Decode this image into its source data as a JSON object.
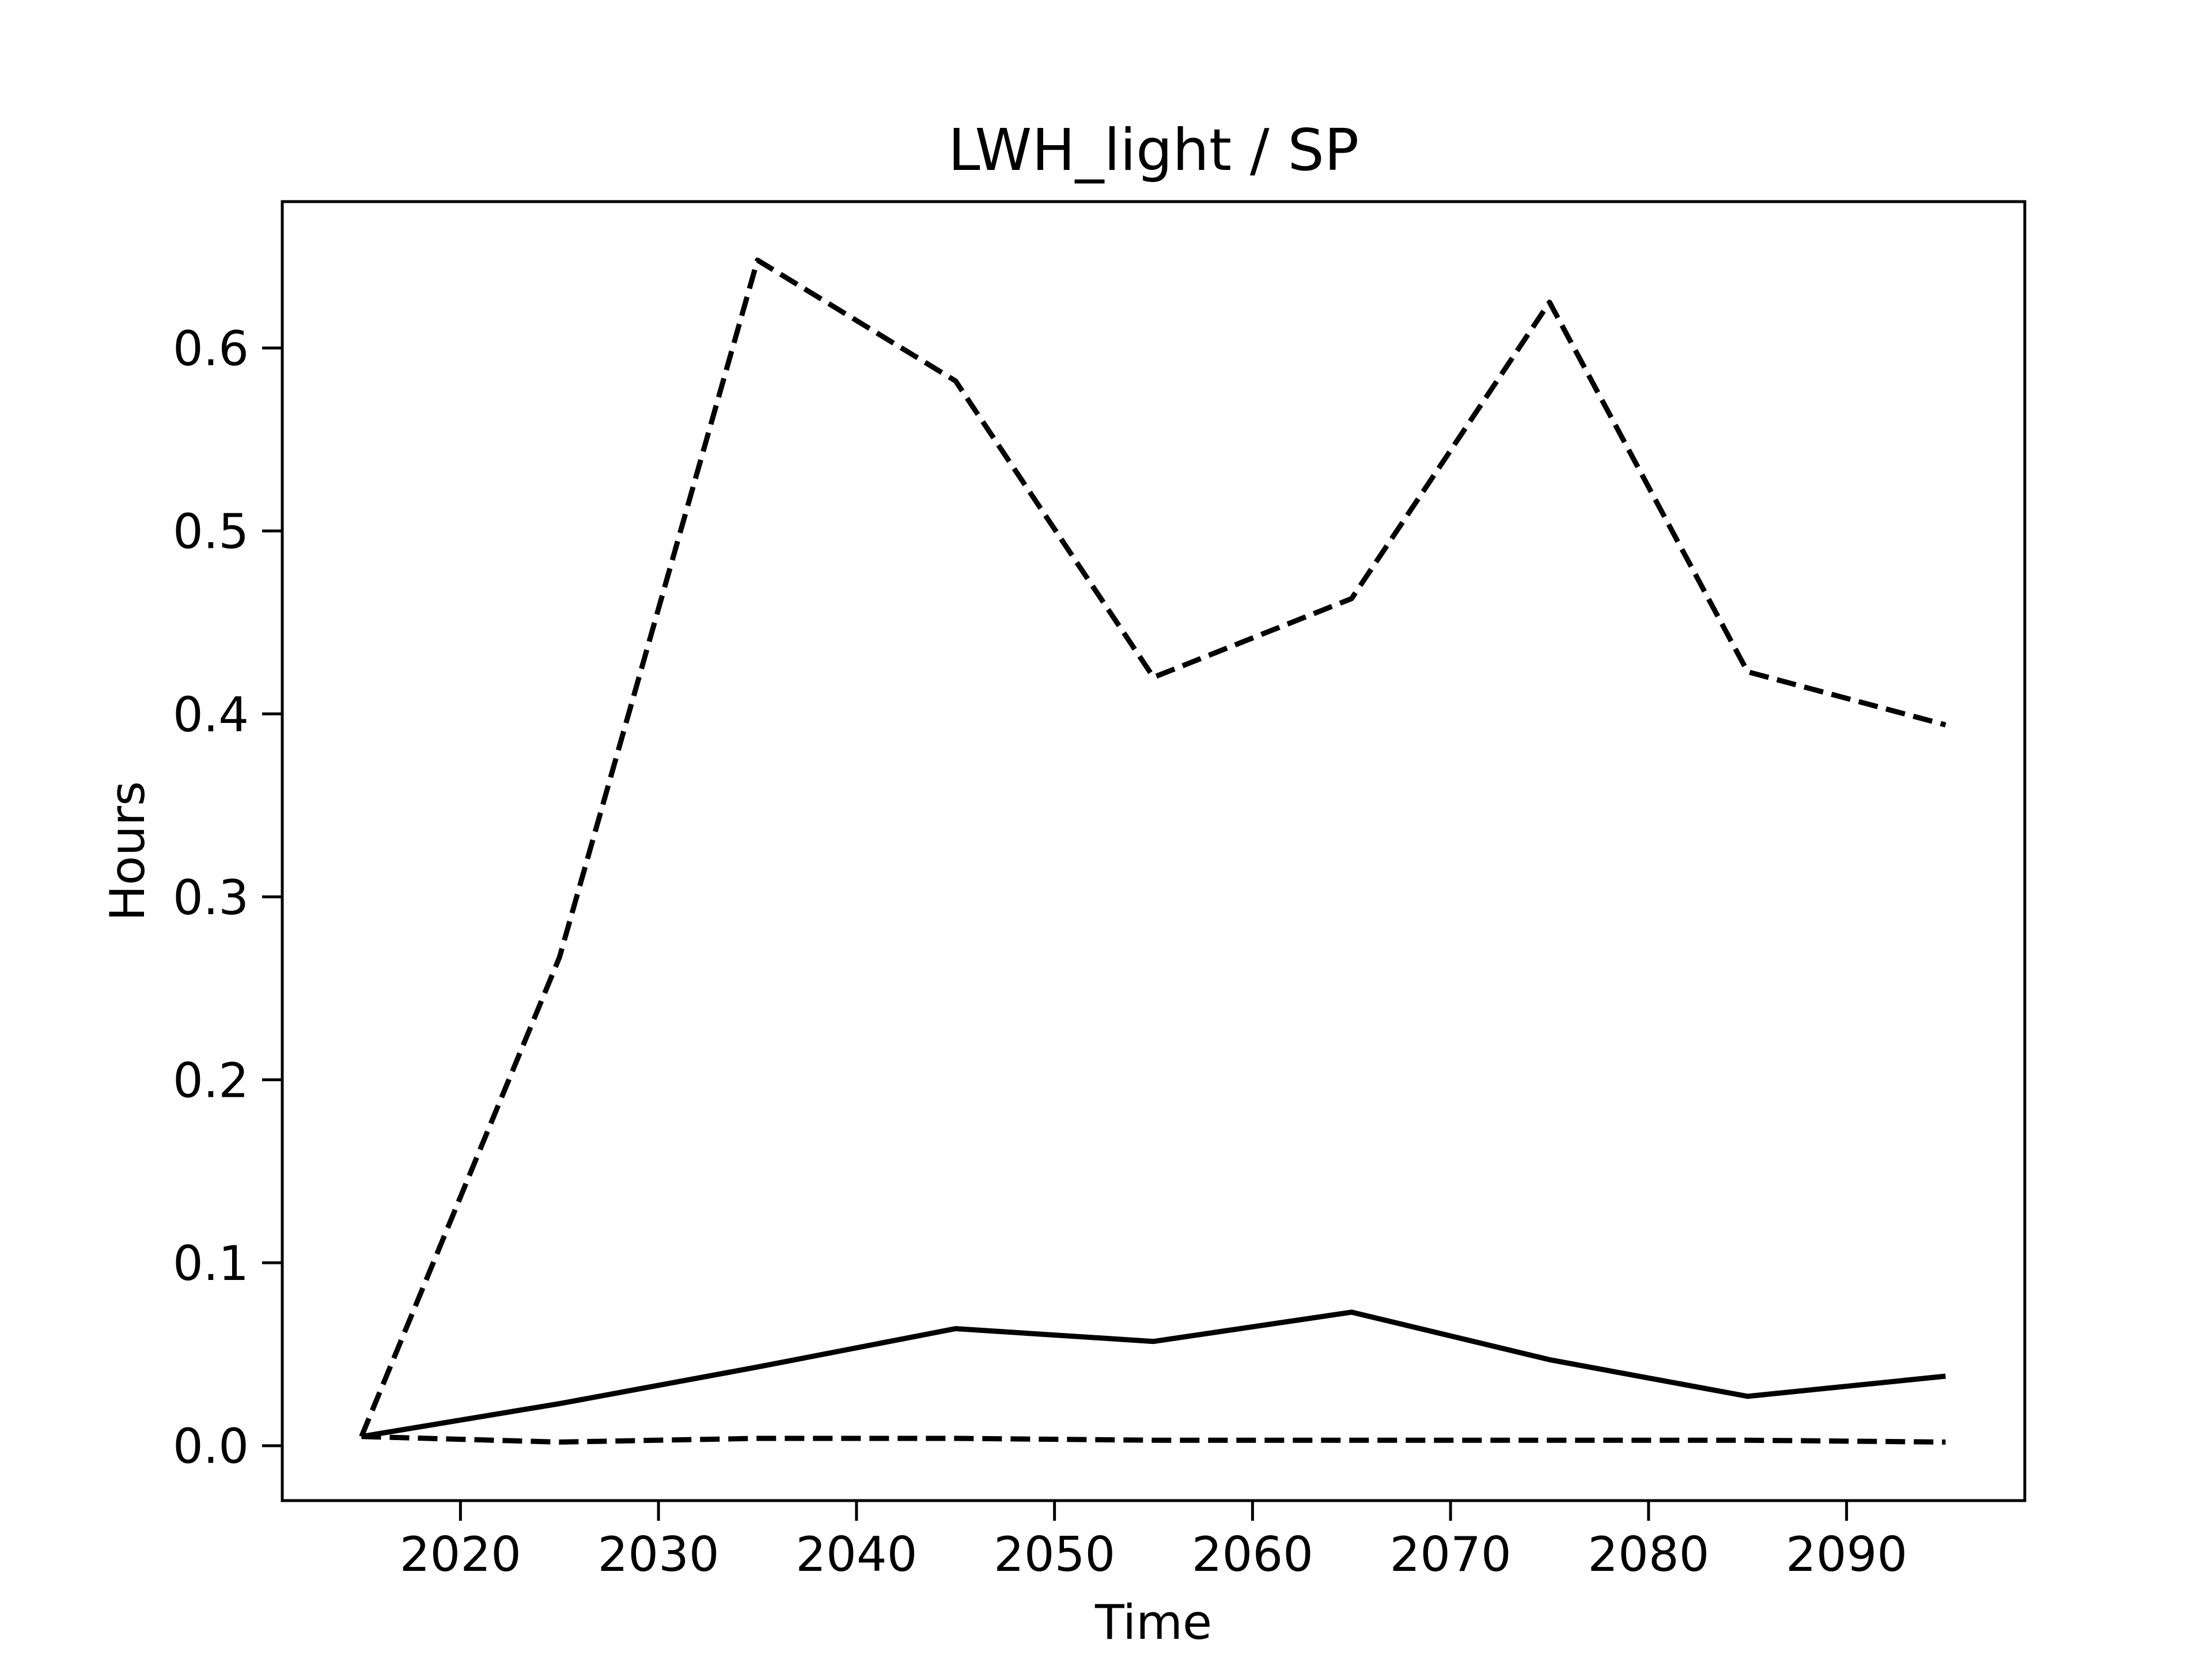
{
  "chart_data": {
    "type": "line",
    "title": "LWH_light / SP",
    "xlabel": "Time",
    "ylabel": "Hours",
    "xlim": [
      2011,
      2099
    ],
    "ylim": [
      -0.03,
      0.68
    ],
    "x_ticks": [
      2020,
      2030,
      2040,
      2050,
      2060,
      2070,
      2080,
      2090
    ],
    "y_ticks": [
      0.0,
      0.1,
      0.2,
      0.3,
      0.4,
      0.5,
      0.6
    ],
    "x_tick_labels": [
      "2020",
      "2030",
      "2040",
      "2050",
      "2060",
      "2070",
      "2080",
      "2090"
    ],
    "y_tick_labels": [
      "0.0",
      "0.1",
      "0.2",
      "0.3",
      "0.4",
      "0.5",
      "0.6"
    ],
    "grid": false,
    "legend": false,
    "x": [
      2015,
      2025,
      2035,
      2045,
      2055,
      2065,
      2075,
      2085,
      2095
    ],
    "series": [
      {
        "values": [
          0.005,
          0.267,
          0.648,
          0.582,
          0.42,
          0.463,
          0.625,
          0.423,
          0.394
        ],
        "line_style": "dashed",
        "color": "#000000"
      },
      {
        "values": [
          0.005,
          0.023,
          0.043,
          0.064,
          0.057,
          0.073,
          0.047,
          0.027,
          0.038
        ],
        "line_style": "solid",
        "color": "#000000"
      },
      {
        "values": [
          0.005,
          0.002,
          0.004,
          0.004,
          0.003,
          0.003,
          0.003,
          0.003,
          0.002
        ],
        "line_style": "dashed",
        "color": "#000000"
      }
    ]
  }
}
